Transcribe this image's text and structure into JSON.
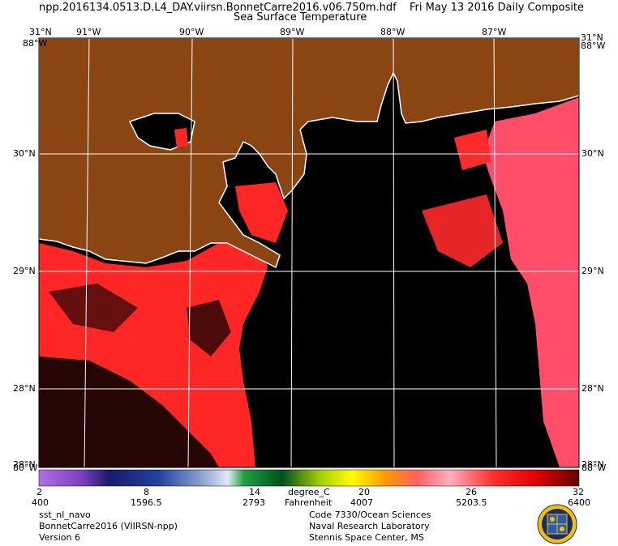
{
  "header": {
    "filename": "npp.2016134.0513.D.L4_DAY.viirsn.BonnetCarre2016.v06.750m.hdf",
    "date": "Fri May 13 2016 Daily Composite",
    "subtitle": "Sea Surface Temperature"
  },
  "map": {
    "top_lat_label": "31°N",
    "bottom_lat_label": "28°N",
    "lat_labels": [
      "30°N",
      "29°N",
      "28°N"
    ],
    "lon_labels": [
      "91°W",
      "90°W",
      "89°W",
      "88°W",
      "87°W"
    ],
    "corner_top_left": "88°W",
    "corner_top_right": "88°W",
    "corner_bottom_left": "80°W",
    "corner_bottom_right": "88°W",
    "colors": {
      "land": "#8b4513",
      "ocean_nodata": "#000000",
      "sst_warm": "#ff2a2a",
      "sst_pink": "#ff6b88",
      "coastline": "#ffffff",
      "grid": "#ffffff"
    }
  },
  "colorbar": {
    "celsius_ticks": [
      "2",
      "8",
      "14",
      "20",
      "26",
      "32"
    ],
    "raw_ticks": [
      "400",
      "1596.5",
      "2793",
      "4007",
      "5203.5",
      "6400"
    ],
    "unit_c": "degree_C",
    "unit_f": "Fahrenheit"
  },
  "footer": {
    "left": [
      "sst_nl_navo",
      "BonnetCarre2016 (VIIRSN-npp)",
      "Version 6"
    ],
    "right": [
      "Code 7330/Ocean Sciences",
      "Naval Research Laboratory",
      "Stennis Space Center, MS"
    ],
    "logo_icon": "nrl-seal-icon"
  }
}
